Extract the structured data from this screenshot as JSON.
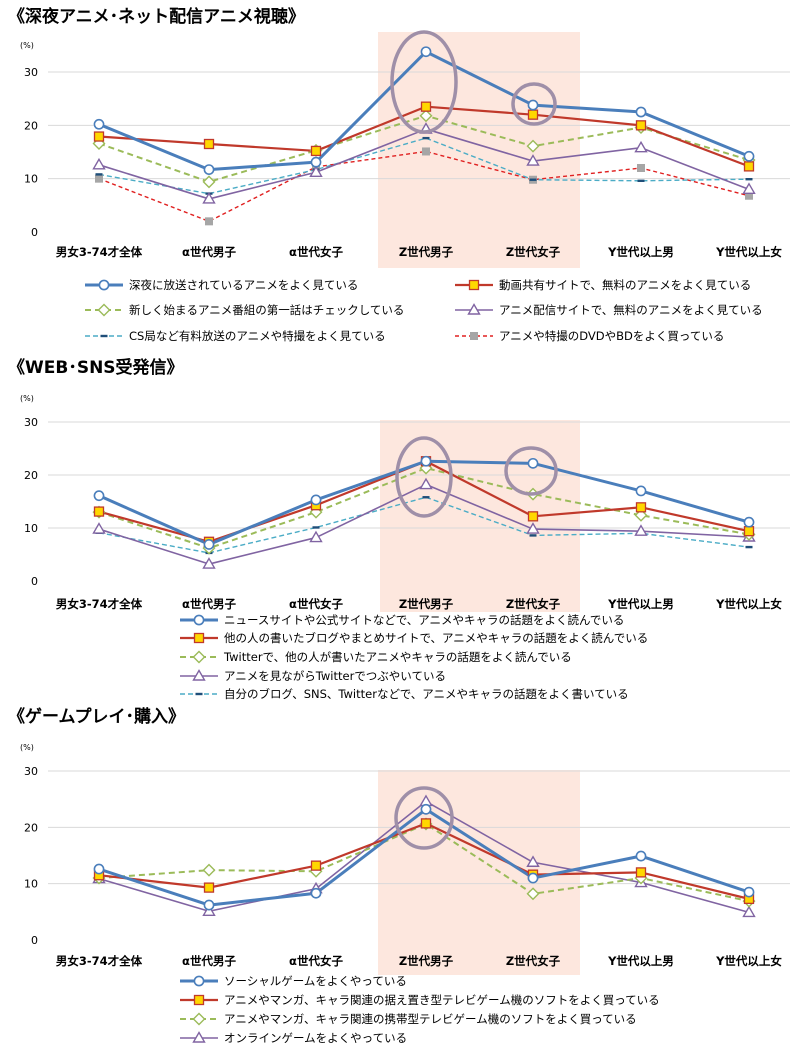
{
  "colors": {
    "blue": "#4a7ebb",
    "red": "#c0392b",
    "green": "#9bbb59",
    "purple": "#8064a2",
    "teal": "#4bacc6",
    "red_dash": "#e02020",
    "gray": "#a6a6a6",
    "yellow": "#ffd700",
    "highlight": "#fde7de",
    "circle": "#9f8fa8"
  },
  "chart_data": [
    {
      "type": "line",
      "title": "《深夜アニメ･ネット配信アニメ視聴》",
      "unit": "(%)",
      "ylim": [
        0,
        30
      ],
      "yticks": [
        "0",
        "10",
        "20",
        "30"
      ],
      "categories": [
        "男女3-74才全体",
        "α世代男子",
        "α世代女子",
        "Z世代男子",
        "Z世代女子",
        "Y世代以上男",
        "Y世代以上女"
      ],
      "highlight_categories": [
        3,
        4
      ],
      "circled_points": [
        {
          "series": 0,
          "index": 3
        },
        {
          "series": 0,
          "index": 4
        }
      ],
      "series": [
        {
          "name": "深夜に放送されているアニメをよく見ている",
          "values": [
            20.2,
            11.7,
            13.1,
            33.8,
            23.8,
            22.5,
            14.2
          ],
          "color": "blue",
          "width": 3,
          "dash": "",
          "marker": "circle"
        },
        {
          "name": "動画共有サイトで、無料のアニメをよく見ている",
          "values": [
            17.9,
            16.5,
            15.2,
            23.5,
            22.0,
            20.0,
            12.3
          ],
          "color": "red",
          "width": 2.2,
          "dash": "",
          "marker": "square"
        },
        {
          "name": "新しく始まるアニメ番組の第一話はチェックしている",
          "values": [
            16.6,
            9.4,
            15.3,
            21.8,
            16.1,
            19.6,
            13.5
          ],
          "color": "green",
          "width": 2,
          "dash": "6,4",
          "marker": "diamond"
        },
        {
          "name": "アニメ配信サイトで、無料のアニメをよく見ている",
          "values": [
            12.6,
            6.2,
            11.2,
            19.3,
            13.3,
            15.8,
            8.0
          ],
          "color": "purple",
          "width": 1.6,
          "dash": "",
          "marker": "triangle"
        },
        {
          "name": "CS局など有料放送のアニメや特撮をよく見ている",
          "values": [
            10.8,
            7.2,
            11.7,
            17.6,
            9.8,
            9.6,
            9.9
          ],
          "color": "teal",
          "width": 1.4,
          "dash": "5,3",
          "marker": "dash"
        },
        {
          "name": "アニメや特撮のDVDやBDをよく買っている",
          "values": [
            10.0,
            2.0,
            12.2,
            15.1,
            9.8,
            12.0,
            6.8
          ],
          "color": "red_dash",
          "width": 1.4,
          "dash": "4,3",
          "marker": "smallsquare"
        }
      ]
    },
    {
      "type": "line",
      "title": "《WEB･SNS受発信》",
      "unit": "(%)",
      "ylim": [
        0,
        30
      ],
      "yticks": [
        "0",
        "10",
        "20",
        "30"
      ],
      "categories": [
        "男女3-74才全体",
        "α世代男子",
        "α世代女子",
        "Z世代男子",
        "Z世代女子",
        "Y世代以上男",
        "Y世代以上女"
      ],
      "highlight_categories": [
        3,
        4
      ],
      "circled_points": [
        {
          "series": 0,
          "index": 3
        },
        {
          "series": 0,
          "index": 4
        }
      ],
      "series": [
        {
          "name": "ニュースサイトや公式サイトなどで、アニメやキャラの話題をよく読んでいる",
          "values": [
            16.1,
            6.9,
            15.3,
            22.6,
            22.2,
            17.0,
            11.1
          ],
          "color": "blue",
          "width": 3,
          "dash": "",
          "marker": "circle"
        },
        {
          "name": "他の人の書いたブログやまとめサイトで、アニメやキャラの話題をよく読んでいる",
          "values": [
            13.1,
            7.4,
            14.3,
            22.6,
            12.2,
            13.9,
            9.4
          ],
          "color": "red",
          "width": 2.2,
          "dash": "",
          "marker": "square"
        },
        {
          "name": "Twitterで、他の人が書いたアニメやキャラの話題をよく読んでいる",
          "values": [
            13.0,
            6.2,
            13.0,
            21.3,
            16.4,
            12.4,
            8.8
          ],
          "color": "green",
          "width": 2,
          "dash": "6,4",
          "marker": "diamond"
        },
        {
          "name": "アニメを見ながらTwitterでつぶやいている",
          "values": [
            9.8,
            3.2,
            8.2,
            18.2,
            9.8,
            9.4,
            8.3
          ],
          "color": "purple",
          "width": 1.6,
          "dash": "",
          "marker": "triangle"
        },
        {
          "name": "自分のブログ、SNS、Twitterなどで、アニメやキャラの話題をよく書いている",
          "values": [
            9.1,
            5.3,
            10.1,
            15.8,
            8.6,
            9.0,
            6.4
          ],
          "color": "teal",
          "width": 1.4,
          "dash": "5,3",
          "marker": "dash"
        }
      ]
    },
    {
      "type": "line",
      "title": "《ゲームプレイ･購入》",
      "unit": "(%)",
      "ylim": [
        0,
        30
      ],
      "yticks": [
        "0",
        "10",
        "20",
        "30"
      ],
      "categories": [
        "男女3-74才全体",
        "α世代男子",
        "α世代女子",
        "Z世代男子",
        "Z世代女子",
        "Y世代以上男",
        "Y世代以上女"
      ],
      "highlight_categories": [
        3
      ],
      "circled_points": [
        {
          "series": 3,
          "index": 3
        }
      ],
      "series": [
        {
          "name": "ソーシャルゲームをよくやっている",
          "values": [
            12.6,
            6.2,
            8.3,
            23.2,
            11.0,
            14.9,
            8.5
          ],
          "color": "blue",
          "width": 3,
          "dash": "",
          "marker": "circle"
        },
        {
          "name": "アニメやマンガ、キャラ関連の据え置き型テレビゲーム機のソフトをよく買っている",
          "values": [
            11.5,
            9.3,
            13.2,
            20.7,
            11.6,
            12.0,
            7.3
          ],
          "color": "red",
          "width": 2.2,
          "dash": "",
          "marker": "square"
        },
        {
          "name": "アニメやマンガ、キャラ関連の携帯型テレビゲーム機のソフトをよく買っている",
          "values": [
            11.0,
            12.4,
            12.2,
            20.6,
            8.2,
            11.0,
            6.9
          ],
          "color": "green",
          "width": 2,
          "dash": "6,4",
          "marker": "diamond"
        },
        {
          "name": "オンラインゲームをよくやっている",
          "values": [
            10.9,
            5.1,
            9.1,
            24.6,
            13.8,
            10.2,
            4.9
          ],
          "color": "purple",
          "width": 1.6,
          "dash": "",
          "marker": "triangle"
        }
      ]
    }
  ]
}
